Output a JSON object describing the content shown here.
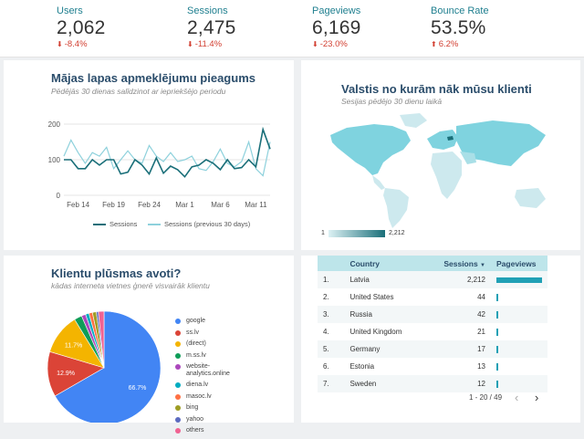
{
  "kpis": [
    {
      "label": "Users",
      "value": "2,062",
      "delta": "-8.4%"
    },
    {
      "label": "Sessions",
      "value": "2,475",
      "delta": "-11.4%"
    },
    {
      "label": "Pageviews",
      "value": "6,169",
      "delta": "-23.0%"
    },
    {
      "label": "Bounce Rate",
      "value": "53.5%",
      "delta": "6.2%"
    }
  ],
  "colors": {
    "primary": "#1a6f79",
    "secondary": "#8ed1dc",
    "negative": "#d23f31",
    "title": "#2b4d6b"
  },
  "sessions_card": {
    "title": "Mājas lapas apmeklējumu pieagums",
    "subtitle": "Pēdējās 30 dienas salīdzinot ar iepriekšējo periodu",
    "legend": [
      "Sessions",
      "Sessions (previous 30 days)"
    ]
  },
  "map_card": {
    "title": "Valstis no kurām nāk mūsu klienti",
    "subtitle": "Sesijas pēdējo 30 dienu laikā",
    "scale_min": "1",
    "scale_max": "2,212"
  },
  "sources_card": {
    "title": "Klientu plūsmas avoti?",
    "subtitle": "kādas interneta vietnes ģnerē visvairāk klientu"
  },
  "country_table": {
    "headers": {
      "country": "Country",
      "sessions": "Sessions",
      "sort_indicator": "▼",
      "pageviews": "Pageviews"
    },
    "rows": [
      {
        "rank": "1.",
        "country": "Latvia",
        "sessions": "2,212",
        "pageviews_fraction": 1.0
      },
      {
        "rank": "2.",
        "country": "United States",
        "sessions": "44",
        "pageviews_fraction": 0.02
      },
      {
        "rank": "3.",
        "country": "Russia",
        "sessions": "42",
        "pageviews_fraction": 0.02
      },
      {
        "rank": "4.",
        "country": "United Kingdom",
        "sessions": "21",
        "pageviews_fraction": 0.01
      },
      {
        "rank": "5.",
        "country": "Germany",
        "sessions": "17",
        "pageviews_fraction": 0.01
      },
      {
        "rank": "6.",
        "country": "Estonia",
        "sessions": "13",
        "pageviews_fraction": 0.01
      },
      {
        "rank": "7.",
        "country": "Sweden",
        "sessions": "12",
        "pageviews_fraction": 0.01
      }
    ],
    "pagination": "1 - 20 / 49",
    "prev_icon": "chevron-left-icon",
    "next_icon": "chevron-right-icon"
  },
  "chart_data": [
    {
      "type": "line",
      "title": "Mājas lapas apmeklējumu pieagums",
      "x": [
        "Feb 12",
        "Feb 13",
        "Feb 14",
        "Feb 15",
        "Feb 16",
        "Feb 17",
        "Feb 18",
        "Feb 19",
        "Feb 20",
        "Feb 21",
        "Feb 22",
        "Feb 23",
        "Feb 24",
        "Feb 25",
        "Feb 26",
        "Feb 27",
        "Feb 28",
        "Mar 1",
        "Mar 2",
        "Mar 3",
        "Mar 4",
        "Mar 5",
        "Mar 6",
        "Mar 7",
        "Mar 8",
        "Mar 9",
        "Mar 10",
        "Mar 11",
        "Mar 12",
        "Mar 13"
      ],
      "xticks": [
        "Feb 14",
        "Feb 19",
        "Feb 24",
        "Mar 1",
        "Mar 6",
        "Mar 11"
      ],
      "yticks": [
        0,
        100,
        200
      ],
      "ylim": [
        0,
        200
      ],
      "series": [
        {
          "name": "Sessions",
          "values": [
            100,
            100,
            75,
            75,
            100,
            85,
            100,
            100,
            60,
            65,
            100,
            85,
            60,
            105,
            62,
            82,
            72,
            52,
            80,
            85,
            100,
            90,
            72,
            100,
            75,
            78,
            100,
            80,
            185,
            130
          ]
        },
        {
          "name": "Sessions (previous 30 days)",
          "values": [
            110,
            155,
            120,
            90,
            120,
            110,
            135,
            75,
            100,
            125,
            100,
            90,
            140,
            110,
            95,
            120,
            95,
            100,
            110,
            75,
            70,
            95,
            130,
            90,
            80,
            95,
            150,
            75,
            55,
            150
          ]
        }
      ]
    },
    {
      "type": "pie",
      "title": "Klientu plūsmas avoti?",
      "categories": [
        "google",
        "ss.lv",
        "(direct)",
        "m.ss.lv",
        "website-analytics.online",
        "diena.lv",
        "masoc.lv",
        "bing",
        "yahoo",
        "others"
      ],
      "values": [
        66.7,
        12.9,
        11.7,
        2.2,
        1.2,
        1.0,
        1.0,
        1.1,
        0.6,
        1.6
      ],
      "slice_labels": [
        "66.7%",
        "12.9%",
        "11.7%",
        "",
        "",
        "",
        "",
        "",
        "",
        ""
      ],
      "colors": [
        "#4285f4",
        "#db4437",
        "#f4b400",
        "#0f9d58",
        "#ab47bc",
        "#00acc1",
        "#ff7043",
        "#9e9d24",
        "#5c6bc0",
        "#f06292"
      ]
    }
  ]
}
